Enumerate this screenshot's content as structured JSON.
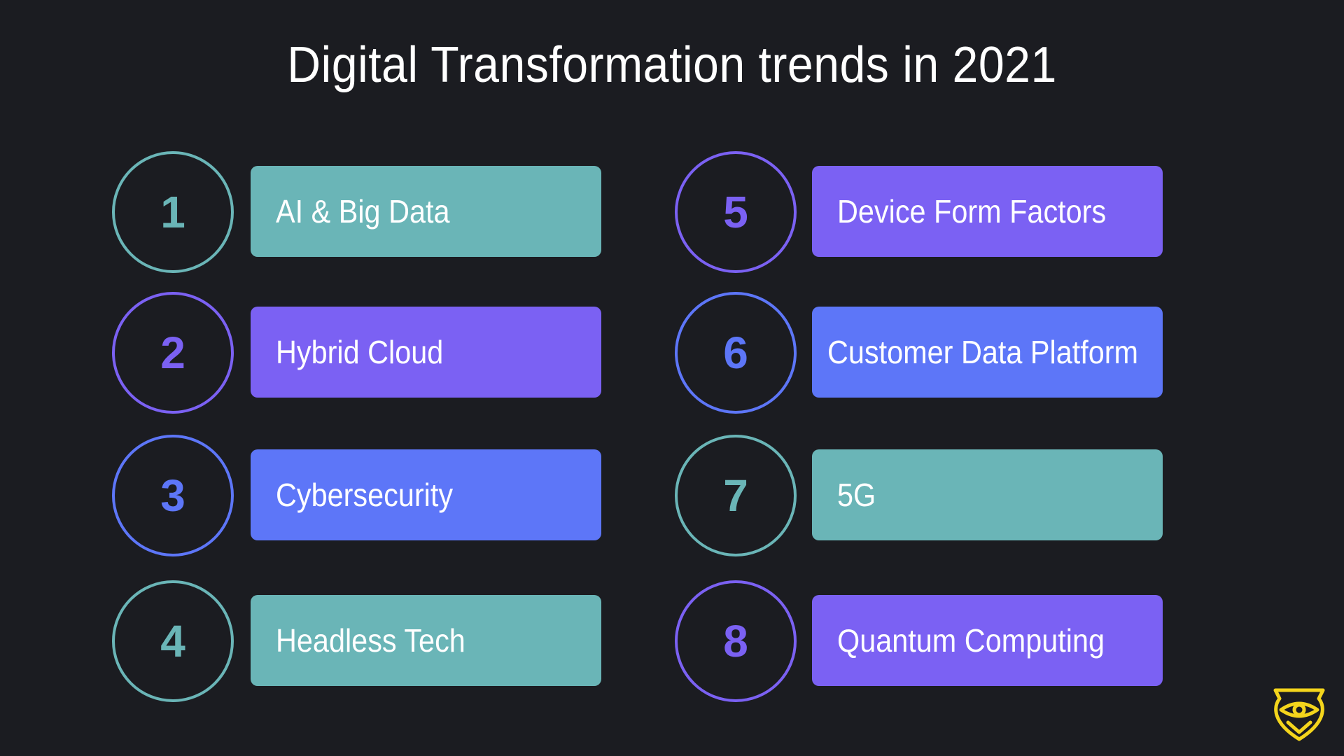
{
  "title": "Digital Transformation trends in 2021",
  "colors": {
    "background": "#1b1c21",
    "teal": "#6ab5b7",
    "purple": "#7b61f3",
    "blue": "#5d76f8",
    "logo": "#f4d51c"
  },
  "trends": [
    {
      "number": "1",
      "label": "AI & Big Data",
      "color": "#6ab5b7"
    },
    {
      "number": "2",
      "label": "Hybrid Cloud",
      "color": "#7b61f3"
    },
    {
      "number": "3",
      "label": "Cybersecurity",
      "color": "#5d76f8"
    },
    {
      "number": "4",
      "label": "Headless Tech",
      "color": "#6ab5b7"
    },
    {
      "number": "5",
      "label": "Device Form Factors",
      "color": "#7b61f3"
    },
    {
      "number": "6",
      "label": "Customer Data Platform",
      "color": "#5d76f8"
    },
    {
      "number": "7",
      "label": "5G",
      "color": "#6ab5b7"
    },
    {
      "number": "8",
      "label": "Quantum Computing",
      "color": "#7b61f3"
    }
  ],
  "logo_icon": "shield-eye-logo-icon"
}
